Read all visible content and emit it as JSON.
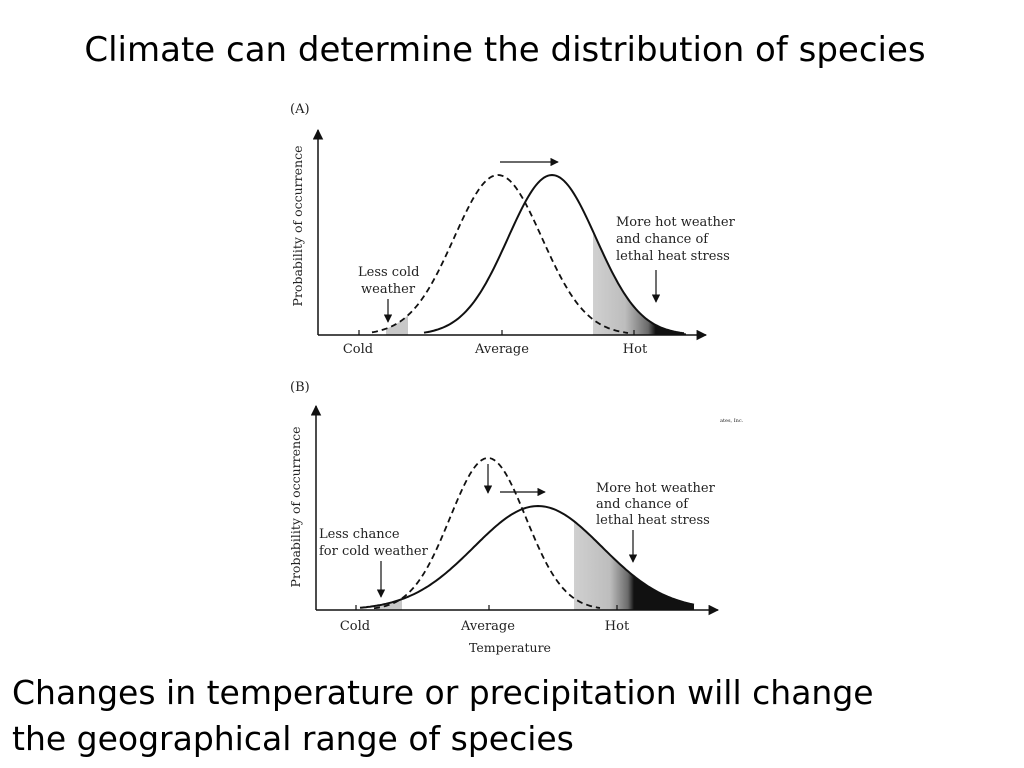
{
  "slide": {
    "title": "Climate can determine the distribution of species",
    "caption_lines": [
      "Changes in temperature or precipitation will change",
      "the geographical range of species"
    ]
  },
  "panel_a": {
    "label": "(A)",
    "ylabel": "Probability of occurrence",
    "ticks": [
      "Cold",
      "Average",
      "Hot"
    ],
    "cold_note": [
      "Less cold",
      "weather"
    ],
    "hot_note": [
      "More hot weather",
      "and chance of",
      "lethal heat stress"
    ]
  },
  "panel_b": {
    "label": "(B)",
    "ylabel": "Probability of occurrence",
    "ticks": [
      "Cold",
      "Average",
      "Hot"
    ],
    "xlabel": "Temperature",
    "cold_note": [
      "Less chance",
      "for cold weather"
    ],
    "hot_note": [
      "More hot weather",
      "and chance of",
      "lethal heat stress"
    ],
    "credit": "ates, Inc."
  },
  "colors": {
    "curve": "#111111",
    "shade_light": "#c8c8c8",
    "shade_dark": "#111111"
  }
}
